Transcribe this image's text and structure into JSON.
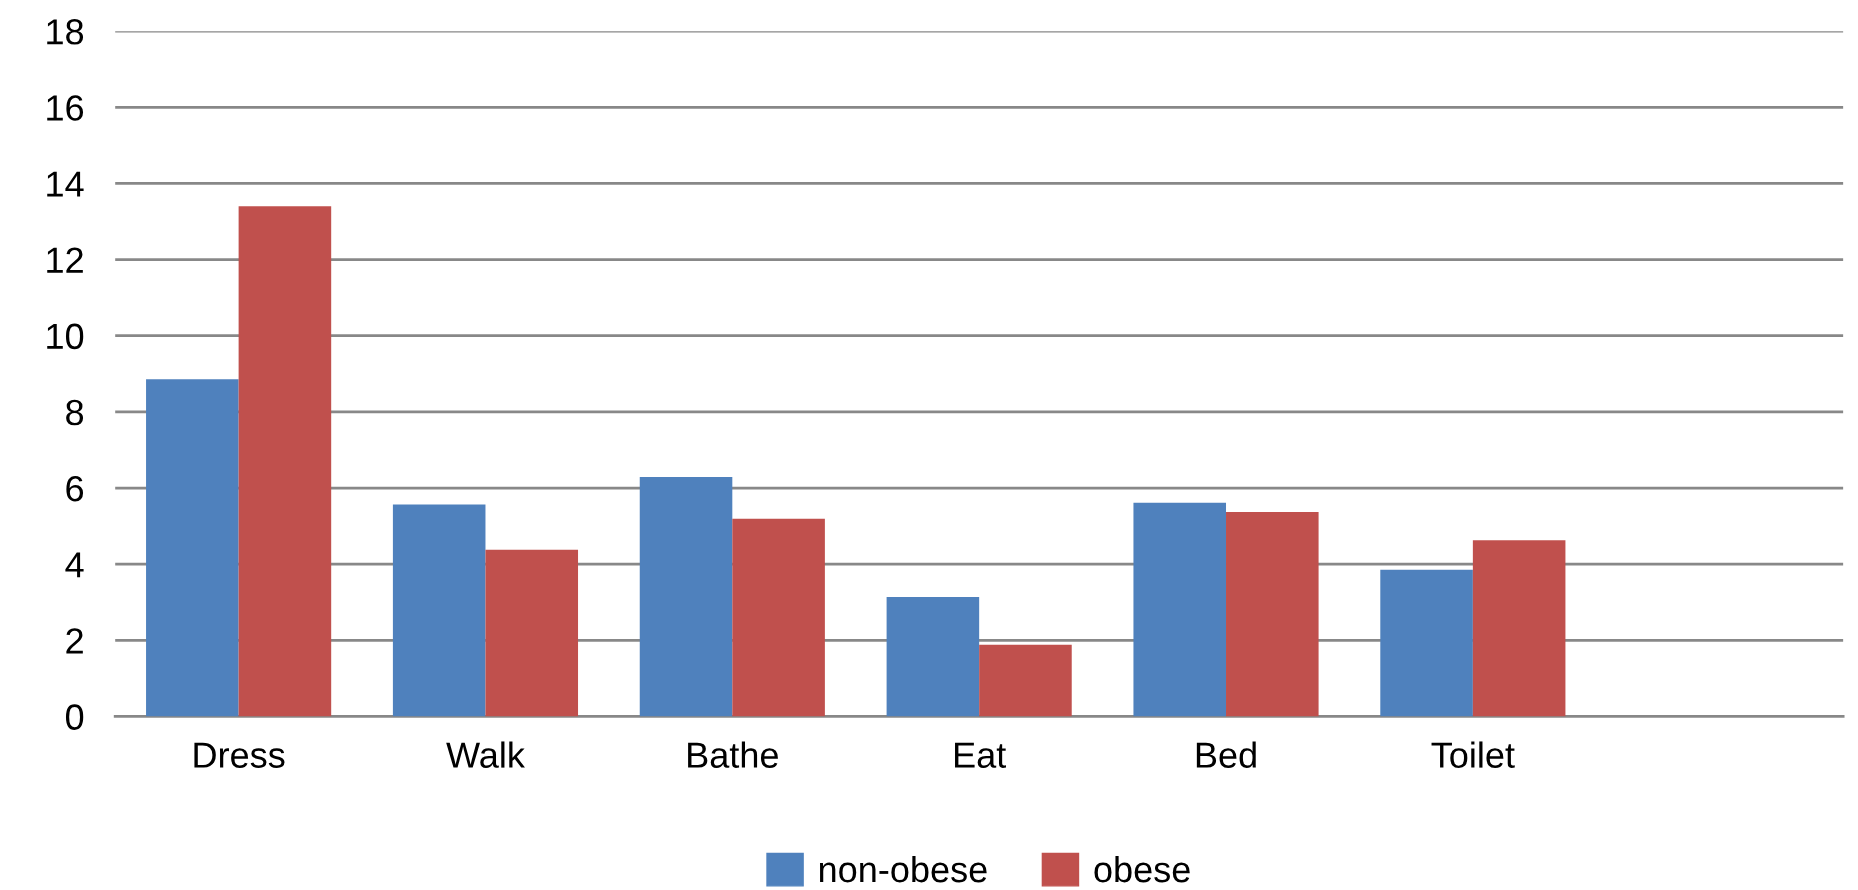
{
  "chart_data": {
    "type": "bar",
    "categories": [
      "Dress",
      "Walk",
      "Bathe",
      "Eat",
      "Bed",
      "Toilet",
      null
    ],
    "series": [
      {
        "name": "non-obese",
        "color": "#4f81bd",
        "values": [
          8.86,
          5.57,
          6.29,
          3.14,
          5.61,
          3.85,
          null
        ]
      },
      {
        "name": "obese",
        "color": "#c0504d",
        "values": [
          13.4,
          4.38,
          5.19,
          1.88,
          5.37,
          4.63,
          null
        ]
      }
    ],
    "ylim": [
      0,
      18
    ],
    "yticks": [
      0,
      2,
      4,
      6,
      8,
      10,
      12,
      14,
      16,
      18
    ],
    "grid": "y",
    "legend": "bottom"
  }
}
